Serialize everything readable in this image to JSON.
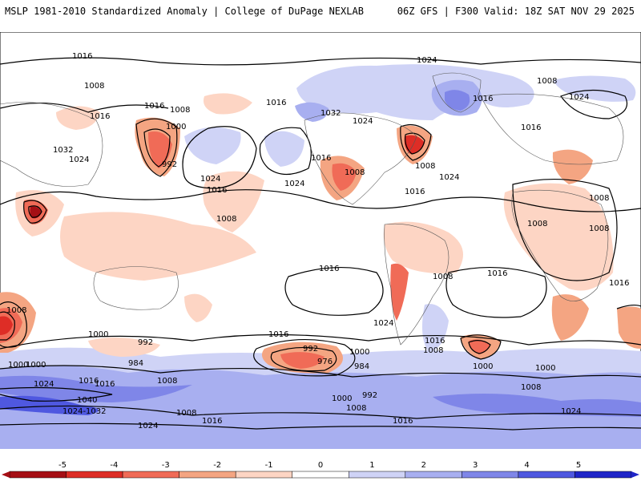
{
  "header": {
    "title_left": "MSLP 1981-2010 Standardized Anomaly | College of DuPage NEXLAB",
    "title_right": "06Z GFS | F300 Valid: 18Z SAT NOV 29 2025"
  },
  "colors": {
    "neg5": "#a50f15",
    "neg4": "#de2d26",
    "neg3": "#f06b57",
    "neg2": "#f4a582",
    "neg1": "#fdd5c4",
    "zero": "#ffffff",
    "pos1": "#cfd3f6",
    "pos2": "#a8aff0",
    "pos3": "#7f86e8",
    "pos4": "#4f58e0",
    "pos5": "#1f25c8"
  },
  "colorbar": {
    "ticks": [
      "-5",
      "-4",
      "-3",
      "-2",
      "-1",
      "0",
      "1",
      "2",
      "3",
      "4",
      "5"
    ]
  },
  "isobar_labels": [
    "1016",
    "1008",
    "1016",
    "1008",
    "1016",
    "1000",
    "1016",
    "1032",
    "1024",
    "1032",
    "1024",
    "992",
    "1024",
    "1016",
    "1024",
    "1008",
    "1016",
    "1008",
    "1024",
    "1008",
    "1016",
    "1008",
    "1024",
    "1008",
    "1016",
    "1024",
    "1016",
    "1008",
    "1016",
    "1008",
    "1000",
    "992",
    "984",
    "1000",
    "1008",
    "1016",
    "1024",
    "1016",
    "1000",
    "992",
    "1000",
    "976",
    "984",
    "1016",
    "1024",
    "1040",
    "1024-1032",
    "1008",
    "1016",
    "1000",
    "992",
    "1008",
    "1024",
    "1008",
    "1000",
    "1016",
    "1008",
    "1016",
    "1016",
    "1000",
    "1008",
    "1016",
    "1024",
    "1008"
  ]
}
